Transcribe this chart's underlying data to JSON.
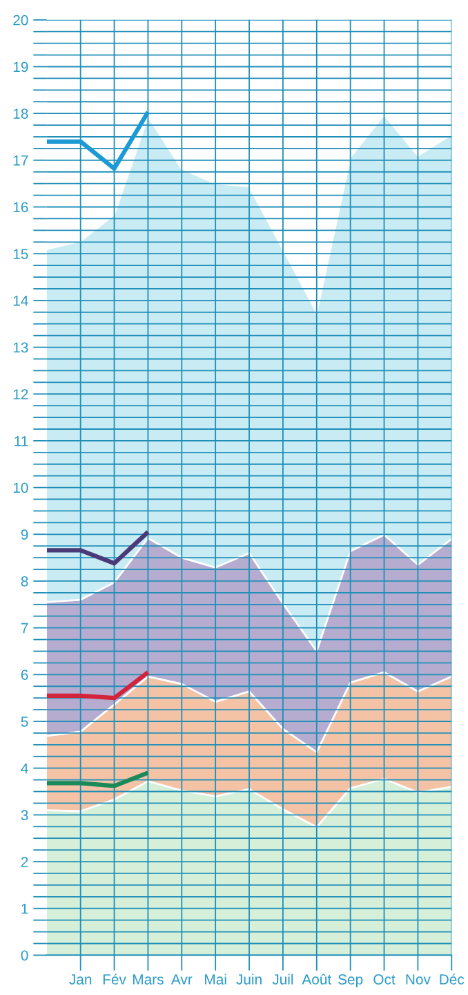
{
  "chart_data": {
    "type": "area",
    "stacked": true,
    "categories": [
      null,
      "Jan",
      "Fév",
      "Mars",
      "Avr",
      "Mai",
      "Juin",
      "Juil",
      "Août",
      "Sep",
      "Oct",
      "Nov",
      "Déc"
    ],
    "series": [
      {
        "color": "#d6efd9",
        "values": [
          3.1,
          3.08,
          3.33,
          3.72,
          3.52,
          3.4,
          3.55,
          3.12,
          2.74,
          3.57,
          3.77,
          3.48,
          3.6
        ]
      },
      {
        "color": "#f4c3a6",
        "values": [
          1.59,
          1.7,
          2.03,
          2.24,
          2.28,
          2.02,
          2.09,
          1.72,
          1.6,
          2.26,
          2.28,
          2.16,
          2.36
        ]
      },
      {
        "color": "#b5acd0",
        "values": [
          2.86,
          2.82,
          2.61,
          2.96,
          2.7,
          2.87,
          2.96,
          2.68,
          2.16,
          2.81,
          2.94,
          2.71,
          2.94
        ]
      },
      {
        "color": "#c9ebf4",
        "values": [
          7.55,
          7.67,
          7.87,
          9.02,
          8.32,
          8.21,
          7.84,
          7.58,
          7.25,
          8.43,
          8.98,
          8.75,
          8.65
        ]
      },
      {
        "type": "line",
        "color": "#1a8a5a",
        "values": [
          3.68,
          3.68,
          3.62,
          3.9,
          null,
          null,
          null,
          null,
          null,
          null,
          null,
          null,
          null
        ]
      },
      {
        "type": "line",
        "color": "#d4243c",
        "values": [
          5.55,
          5.55,
          5.5,
          6.05,
          null,
          null,
          null,
          null,
          null,
          null,
          null,
          null,
          null
        ]
      },
      {
        "type": "line",
        "color": "#4a3a78",
        "values": [
          8.66,
          8.66,
          8.38,
          9.05,
          null,
          null,
          null,
          null,
          null,
          null,
          null,
          null,
          null
        ]
      },
      {
        "type": "line",
        "color": "#1c9ad6",
        "values": [
          17.4,
          17.4,
          16.82,
          18.03,
          null,
          null,
          null,
          null,
          null,
          null,
          null,
          null,
          null
        ]
      }
    ],
    "ylim": [
      0,
      20
    ],
    "yticks": [
      0,
      {
        "value": 0.25,
        "label": null
      },
      {
        "value": 0.5,
        "label": null
      },
      {
        "value": 0.75,
        "label": null
      },
      1,
      {
        "value": 1.25,
        "label": null
      },
      {
        "value": 1.5,
        "label": null
      },
      {
        "value": 1.75,
        "label": null
      },
      2,
      {
        "value": 2.25,
        "label": null
      },
      {
        "value": 2.5,
        "label": null
      },
      {
        "value": 2.75,
        "label": null
      },
      3,
      {
        "value": 3.25,
        "label": null
      },
      {
        "value": 3.5,
        "label": null
      },
      {
        "value": 3.75,
        "label": null
      },
      4,
      {
        "value": 4.25,
        "label": null
      },
      {
        "value": 4.5,
        "label": null
      },
      {
        "value": 4.75,
        "label": null
      },
      5,
      {
        "value": 5.25,
        "label": null
      },
      {
        "value": 5.5,
        "label": null
      },
      {
        "value": 5.75,
        "label": null
      },
      6,
      {
        "value": 6.25,
        "label": null
      },
      {
        "value": 6.5,
        "label": null
      },
      {
        "value": 6.75,
        "label": null
      },
      7,
      {
        "value": 7.25,
        "label": null
      },
      {
        "value": 7.5,
        "label": null
      },
      {
        "value": 7.75,
        "label": null
      },
      8,
      {
        "value": 8.25,
        "label": null
      },
      {
        "value": 8.5,
        "label": null
      },
      {
        "value": 8.75,
        "label": null
      },
      9,
      {
        "value": 9.25,
        "label": null
      },
      {
        "value": 9.5,
        "label": null
      },
      {
        "value": 9.75,
        "label": null
      },
      10,
      {
        "value": 10.25,
        "label": null
      },
      {
        "value": 10.5,
        "label": null
      },
      {
        "value": 10.75,
        "label": null
      },
      11,
      {
        "value": 11.25,
        "label": null
      },
      {
        "value": 11.5,
        "label": null
      },
      {
        "value": 11.75,
        "label": null
      },
      12,
      {
        "value": 12.25,
        "label": null
      },
      {
        "value": 12.5,
        "label": null
      },
      {
        "value": 12.75,
        "label": null
      },
      13,
      {
        "value": 13.25,
        "label": null
      },
      {
        "value": 13.5,
        "label": null
      },
      {
        "value": 13.75,
        "label": null
      },
      14,
      {
        "value": 14.25,
        "label": null
      },
      {
        "value": 14.5,
        "label": null
      },
      {
        "value": 14.75,
        "label": null
      },
      15,
      {
        "value": 15.25,
        "label": null
      },
      {
        "value": 15.5,
        "label": null
      },
      {
        "value": 15.75,
        "label": null
      },
      16,
      {
        "value": 16.25,
        "label": null
      },
      {
        "value": 16.5,
        "label": null
      },
      {
        "value": 16.75,
        "label": null
      },
      17,
      {
        "value": 17.25,
        "label": null
      },
      {
        "value": 17.5,
        "label": null
      },
      {
        "value": 17.75,
        "label": null
      },
      18,
      {
        "value": 18.25,
        "label": null
      },
      {
        "value": 18.5,
        "label": null
      },
      {
        "value": 18.75,
        "label": null
      },
      19,
      {
        "value": 19.25,
        "label": null
      },
      {
        "value": 19.5,
        "label": null
      },
      {
        "value": 19.75,
        "label": null
      },
      20
    ],
    "grid": true,
    "marker": "none",
    "line_style": "solid"
  }
}
